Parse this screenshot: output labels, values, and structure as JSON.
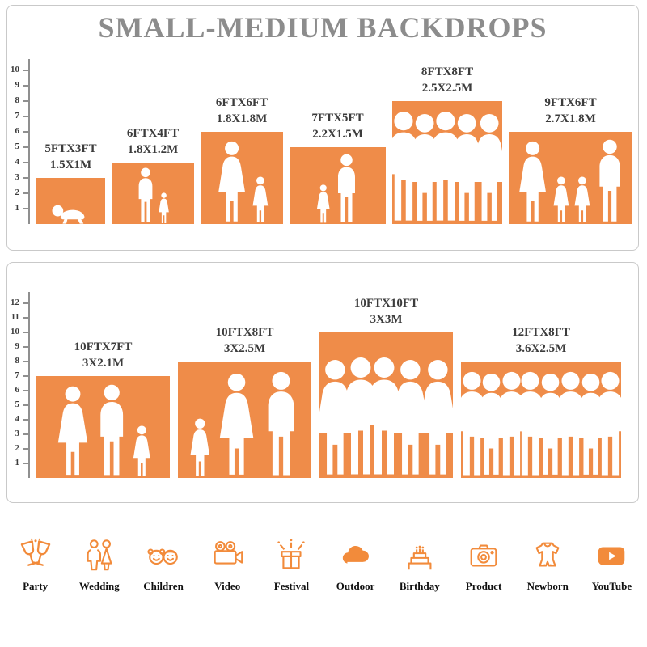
{
  "header": {
    "title": "SMALL-MEDIUM BACKDROPS"
  },
  "colors": {
    "bar_orange": "#EF8C49",
    "icon_orange": "#F28B3B",
    "title_gray": "#8C8C8C",
    "text_dark": "#3C3C3C"
  },
  "chart_data": [
    {
      "type": "bar",
      "panel": "small-medium-backdrops",
      "ylim": [
        0,
        10
      ],
      "bars": [
        {
          "size_ft": "5FTX3FT",
          "size_m": "1.5X1M",
          "w_ft": 5,
          "h_ft": 3,
          "figures": [
            "baby"
          ]
        },
        {
          "size_ft": "6FTX4FT",
          "size_m": "1.8X1.2M",
          "w_ft": 6,
          "h_ft": 4,
          "figures": [
            "man",
            "girl"
          ]
        },
        {
          "size_ft": "6FTX6FT",
          "size_m": "1.8X1.8M",
          "w_ft": 6,
          "h_ft": 6,
          "figures": [
            "woman",
            "girl"
          ]
        },
        {
          "size_ft": "7FTX5FT",
          "size_m": "2.2X1.5M",
          "w_ft": 7,
          "h_ft": 5,
          "figures": [
            "girl",
            "man"
          ]
        },
        {
          "size_ft": "8FTX8FT",
          "size_m": "2.5X2.5M",
          "w_ft": 8,
          "h_ft": 8,
          "figures": [
            "man",
            "woman",
            "man",
            "woman",
            "woman"
          ]
        },
        {
          "size_ft": "9FTX6FT",
          "size_m": "2.7X1.8M",
          "w_ft": 9,
          "h_ft": 6,
          "figures": [
            "woman",
            "girl",
            "girl",
            "man"
          ]
        }
      ]
    },
    {
      "type": "bar",
      "panel": "large-backdrops",
      "ylim": [
        0,
        12
      ],
      "bars": [
        {
          "size_ft": "10FTX7FT",
          "size_m": "3X2.1M",
          "w_ft": 10,
          "h_ft": 7,
          "figures": [
            "woman",
            "man",
            "girl"
          ]
        },
        {
          "size_ft": "10FTX8FT",
          "size_m": "3X2.5M",
          "w_ft": 10,
          "h_ft": 8,
          "figures": [
            "girl",
            "woman",
            "man"
          ]
        },
        {
          "size_ft": "10FTX10FT",
          "size_m": "3X3M",
          "w_ft": 10,
          "h_ft": 10,
          "figures": [
            "woman",
            "man",
            "man",
            "woman",
            "woman"
          ]
        },
        {
          "size_ft": "12FTX8FT",
          "size_m": "3.6X2.5M",
          "w_ft": 12,
          "h_ft": 8,
          "figures": [
            "man",
            "woman",
            "man",
            "man",
            "woman",
            "man",
            "woman",
            "man"
          ]
        }
      ]
    }
  ],
  "icons": [
    {
      "name": "party-icon",
      "label": "Party"
    },
    {
      "name": "wedding-icon",
      "label": "Wedding"
    },
    {
      "name": "children-icon",
      "label": "Children"
    },
    {
      "name": "video-icon",
      "label": "Video"
    },
    {
      "name": "festival-icon",
      "label": "Festival"
    },
    {
      "name": "outdoor-icon",
      "label": "Outdoor"
    },
    {
      "name": "birthday-icon",
      "label": "Birthday"
    },
    {
      "name": "product-icon",
      "label": "Product"
    },
    {
      "name": "newborn-icon",
      "label": "Newborn"
    },
    {
      "name": "youtube-icon",
      "label": "YouTube"
    }
  ]
}
